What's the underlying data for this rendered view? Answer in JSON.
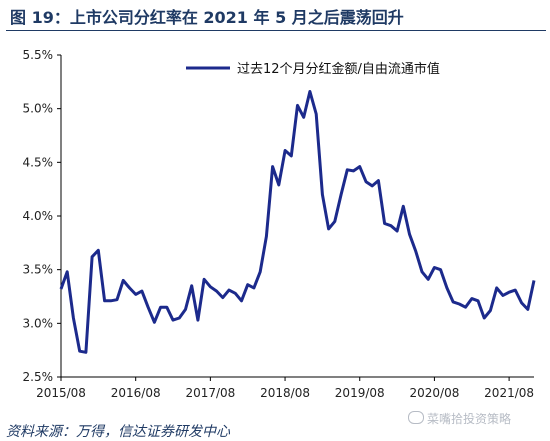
{
  "header": {
    "title": "图 19：上市公司分红率在 2021 年 5 月之后震荡回升"
  },
  "footer": {
    "source": "资料来源：万得，信达证券研发中心",
    "watermark": "菜嘴拾投资策略"
  },
  "colors": {
    "series": "#1c2a8c",
    "title": "#1f3a64",
    "axis": "#000000"
  },
  "chart_data": {
    "type": "line",
    "title": "",
    "xlabel": "",
    "ylabel": "",
    "ylim": [
      2.5,
      5.5
    ],
    "y_ticks": [
      "2.5%",
      "3.0%",
      "3.5%",
      "4.0%",
      "4.5%",
      "5.0%",
      "5.5%"
    ],
    "y_tick_values": [
      2.5,
      3.0,
      3.5,
      4.0,
      4.5,
      5.0,
      5.5
    ],
    "x_ticks": [
      "2015/08",
      "2016/08",
      "2017/08",
      "2018/08",
      "2019/08",
      "2020/08",
      "2021/08"
    ],
    "grid": false,
    "legend": "top-right",
    "series": [
      {
        "name": "过去12个月分红金额/自由流通市值",
        "x": [
          "2015/08",
          "2015/09",
          "2015/10",
          "2015/11",
          "2015/12",
          "2016/01",
          "2016/02",
          "2016/03",
          "2016/04",
          "2016/05",
          "2016/06",
          "2016/07",
          "2016/08",
          "2016/09",
          "2016/10",
          "2016/11",
          "2016/12",
          "2017/01",
          "2017/02",
          "2017/03",
          "2017/04",
          "2017/05",
          "2017/06",
          "2017/07",
          "2017/08",
          "2017/09",
          "2017/10",
          "2017/11",
          "2017/12",
          "2018/01",
          "2018/02",
          "2018/03",
          "2018/04",
          "2018/05",
          "2018/06",
          "2018/07",
          "2018/08",
          "2018/09",
          "2018/10",
          "2018/11",
          "2018/12",
          "2019/01",
          "2019/02",
          "2019/03",
          "2019/04",
          "2019/05",
          "2019/06",
          "2019/07",
          "2019/08",
          "2019/09",
          "2019/10",
          "2019/11",
          "2019/12",
          "2020/01",
          "2020/02",
          "2020/03",
          "2020/04",
          "2020/05",
          "2020/06",
          "2020/07",
          "2020/08",
          "2020/09",
          "2020/10",
          "2020/11",
          "2020/12",
          "2021/01",
          "2021/02",
          "2021/03",
          "2021/04",
          "2021/05",
          "2021/06",
          "2021/07",
          "2021/08",
          "2021/09",
          "2021/10",
          "2021/11",
          "2021/12"
        ],
        "values": [
          3.32,
          3.48,
          3.05,
          2.74,
          2.73,
          3.62,
          3.68,
          3.21,
          3.21,
          3.22,
          3.4,
          3.33,
          3.27,
          3.3,
          3.15,
          3.01,
          3.15,
          3.15,
          3.03,
          3.05,
          3.13,
          3.35,
          3.03,
          3.41,
          3.34,
          3.3,
          3.24,
          3.31,
          3.28,
          3.21,
          3.36,
          3.33,
          3.48,
          3.81,
          4.46,
          4.29,
          4.61,
          4.56,
          5.03,
          4.92,
          5.16,
          4.95,
          4.2,
          3.88,
          3.95,
          4.2,
          4.43,
          4.42,
          4.46,
          4.32,
          4.28,
          4.33,
          3.93,
          3.91,
          3.86,
          4.09,
          3.83,
          3.67,
          3.48,
          3.41,
          3.52,
          3.5,
          3.33,
          3.2,
          3.18,
          3.15,
          3.23,
          3.21,
          3.05,
          3.12,
          3.33,
          3.26,
          3.29,
          3.31,
          3.19,
          3.13,
          3.4
        ]
      }
    ]
  }
}
